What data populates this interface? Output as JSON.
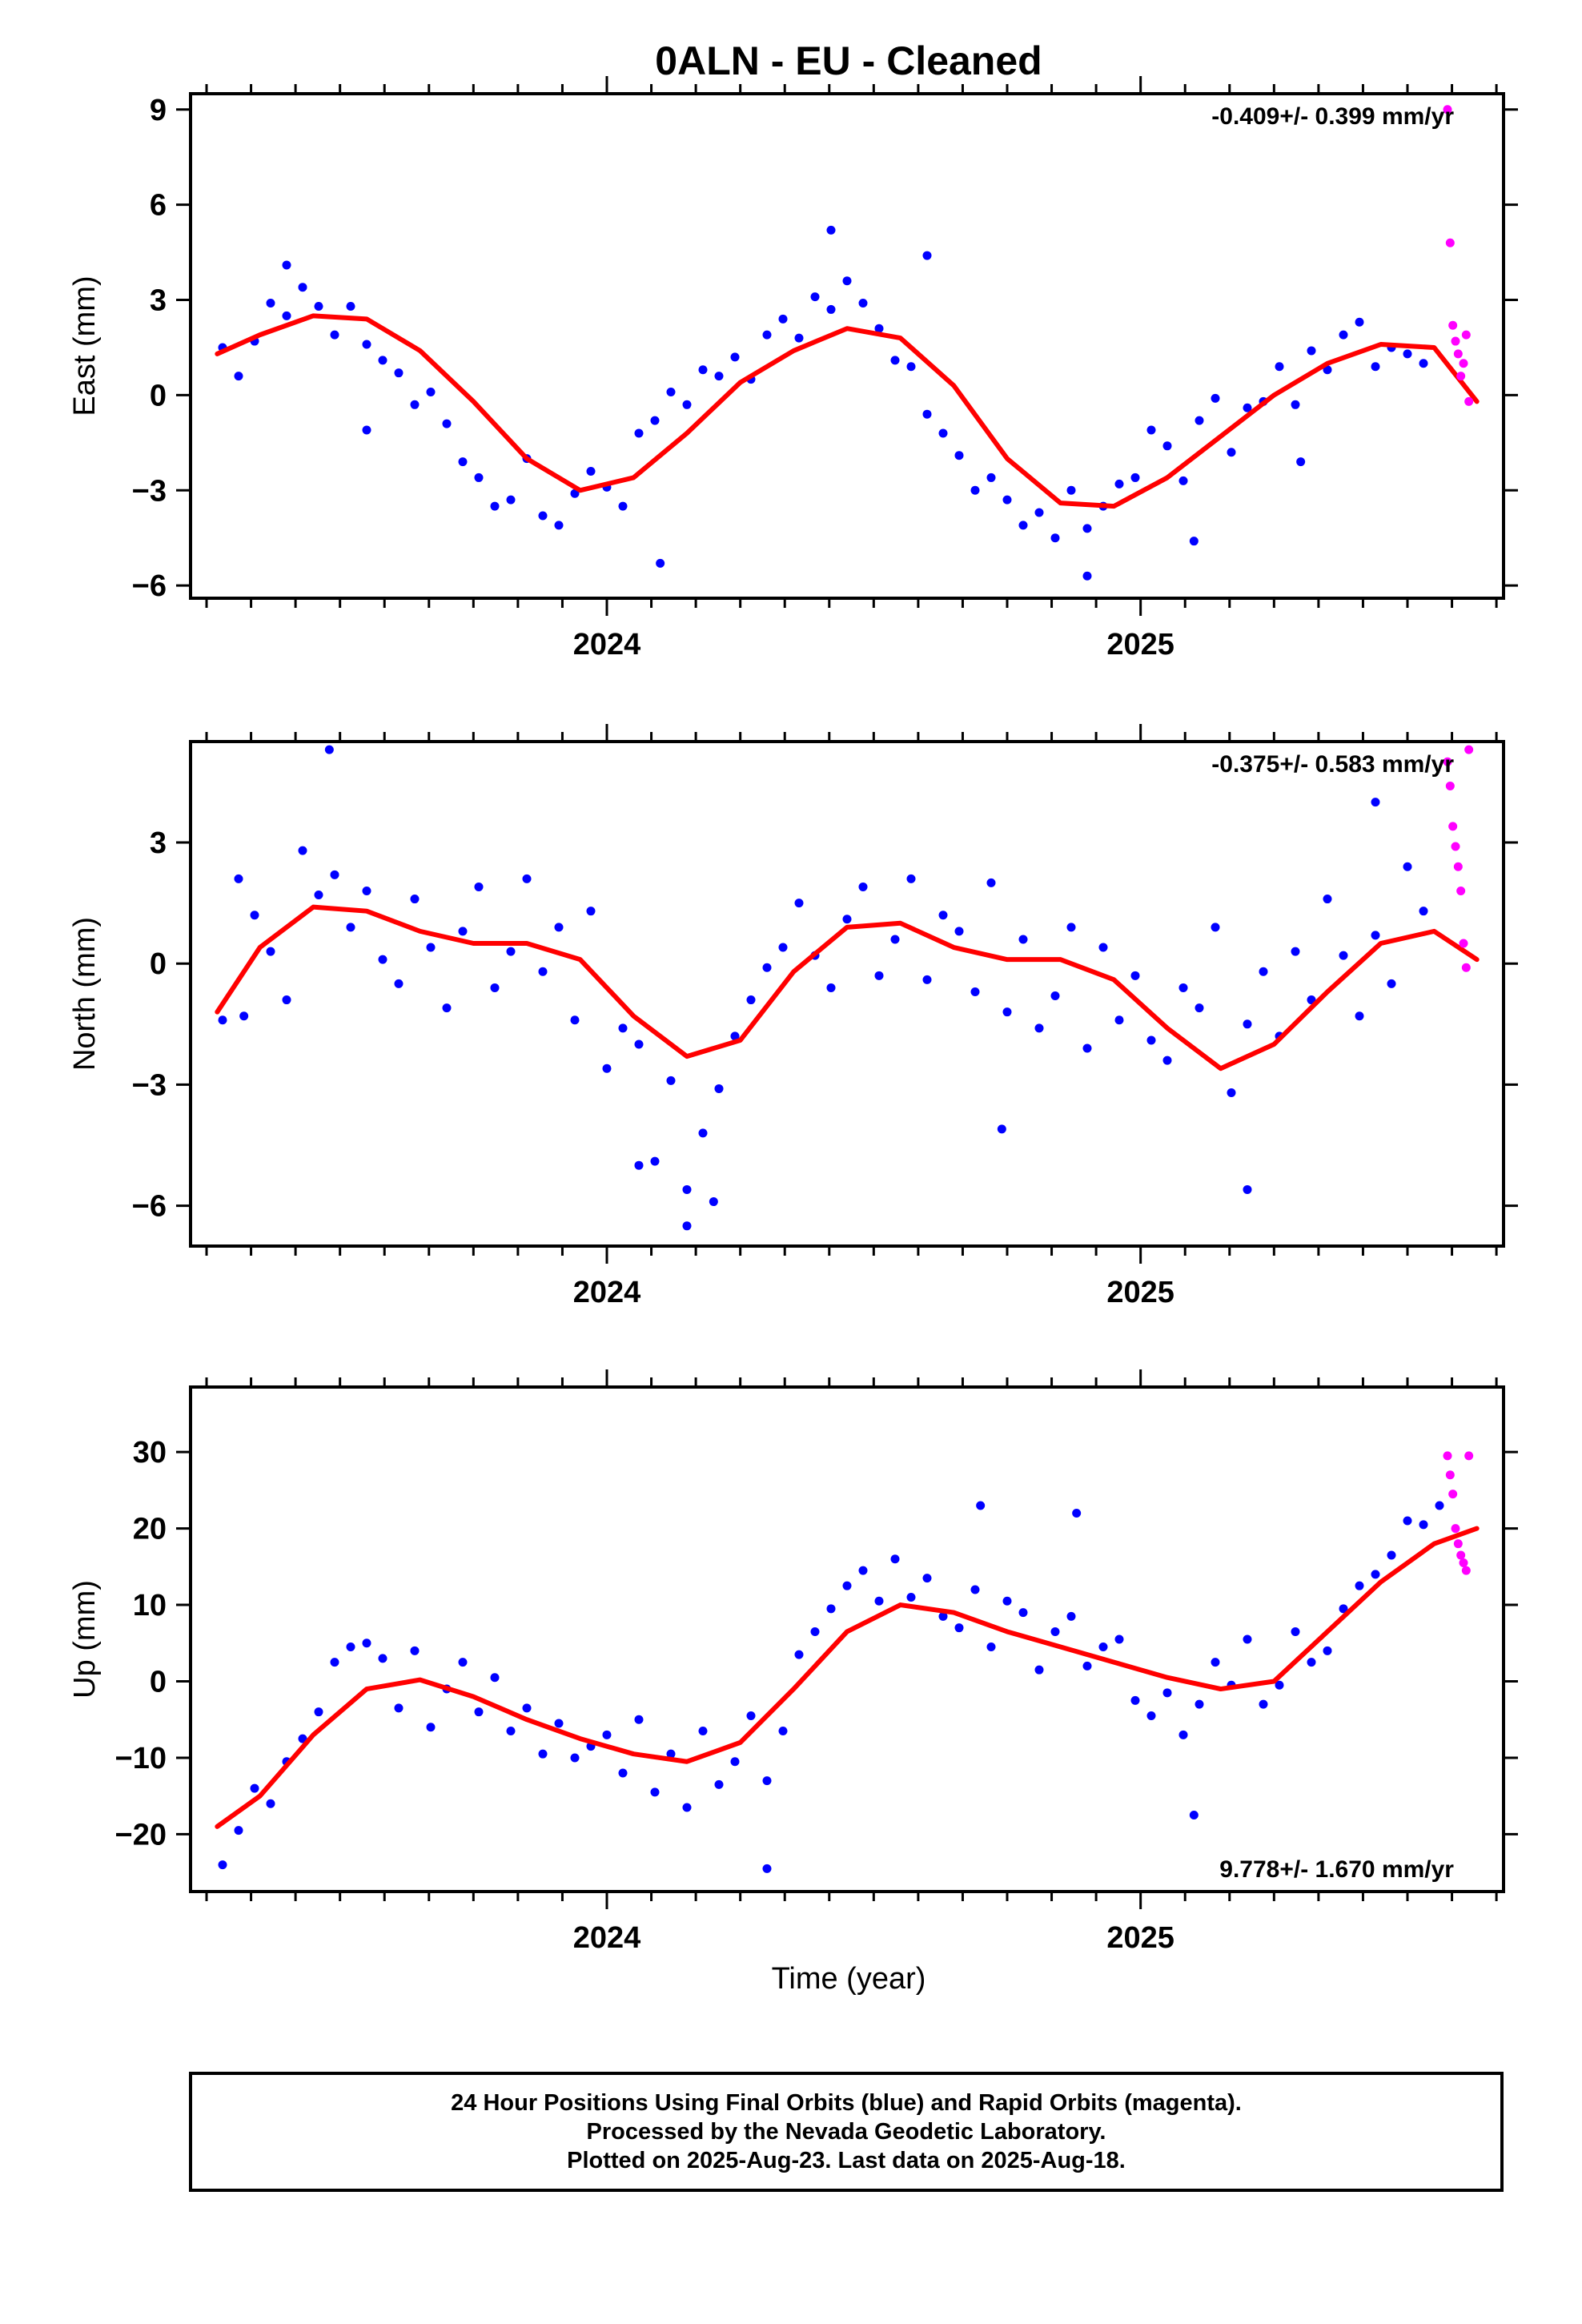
{
  "title": "0ALN  - EU - Cleaned",
  "colors": {
    "final": "#0000ff",
    "rapid": "#ff00ff",
    "model": "#ff0000",
    "frame": "#000000"
  },
  "xlabel": "Time (year)",
  "footer": {
    "line1": "24 Hour Positions Using Final Orbits (blue) and Rapid Orbits (magenta).",
    "line2": "Processed by the Nevada Geodetic Laboratory.",
    "line3": "Plotted on 2025-Aug-23. Last data on 2025-Aug-18."
  },
  "chart_data": [
    {
      "type": "scatter",
      "component": "east",
      "ylabel": "East (mm)",
      "rate_label": "-0.409+/- 0.399 mm/yr",
      "xlim": [
        2023.22,
        2025.68
      ],
      "ylim": [
        -6.4,
        9.5
      ],
      "yticks": [
        -6,
        -3,
        0,
        3,
        6,
        9
      ],
      "xticks": [
        2024,
        2025
      ],
      "grid": false,
      "model_fit": {
        "name": "red curve",
        "x": [
          2023.27,
          2023.35,
          2023.45,
          2023.55,
          2023.65,
          2023.75,
          2023.85,
          2023.95,
          2024.05,
          2024.15,
          2024.25,
          2024.35,
          2024.45,
          2024.55,
          2024.65,
          2024.75,
          2024.85,
          2024.95,
          2025.05,
          2025.15,
          2025.25,
          2025.35,
          2025.45,
          2025.55,
          2025.63
        ],
        "y": [
          1.3,
          1.9,
          2.5,
          2.4,
          1.4,
          -0.2,
          -2.0,
          -3.0,
          -2.6,
          -1.2,
          0.4,
          1.4,
          2.1,
          1.8,
          0.3,
          -2.0,
          -3.4,
          -3.5,
          -2.6,
          -1.3,
          0.0,
          1.0,
          1.6,
          1.5,
          -0.2
        ]
      },
      "series_final": {
        "x": [
          2023.28,
          2023.31,
          2023.34,
          2023.37,
          2023.4,
          2023.43,
          2023.46,
          2023.49,
          2023.52,
          2023.55,
          2023.58,
          2023.61,
          2023.64,
          2023.67,
          2023.7,
          2023.73,
          2023.76,
          2023.79,
          2023.82,
          2023.85,
          2023.88,
          2023.91,
          2023.94,
          2023.97,
          2024.0,
          2024.03,
          2024.06,
          2024.09,
          2024.12,
          2024.15,
          2024.18,
          2024.21,
          2024.24,
          2024.27,
          2024.3,
          2024.33,
          2024.36,
          2024.39,
          2024.42,
          2024.45,
          2024.48,
          2024.51,
          2024.54,
          2024.57,
          2024.6,
          2024.63,
          2024.66,
          2024.69,
          2024.72,
          2024.75,
          2024.78,
          2024.81,
          2024.84,
          2024.87,
          2024.9,
          2024.93,
          2024.96,
          2024.99,
          2025.02,
          2025.05,
          2025.08,
          2025.11,
          2025.14,
          2025.17,
          2025.2,
          2025.23,
          2025.26,
          2025.29,
          2025.32,
          2025.35,
          2025.38,
          2025.41,
          2025.44,
          2025.47,
          2025.5,
          2025.53,
          2025.3,
          2023.4,
          2024.42,
          2024.9,
          2023.55,
          2024.1,
          2024.6,
          2025.1
        ],
        "y": [
          1.5,
          0.6,
          1.7,
          2.9,
          2.5,
          3.4,
          2.8,
          1.9,
          2.8,
          1.6,
          1.1,
          0.7,
          -0.3,
          0.1,
          -0.9,
          -2.1,
          -2.6,
          -3.5,
          -3.3,
          -2.0,
          -3.8,
          -4.1,
          -3.1,
          -2.4,
          -2.9,
          -3.5,
          -1.2,
          -0.8,
          0.1,
          -0.3,
          0.8,
          0.6,
          1.2,
          0.5,
          1.9,
          2.4,
          1.8,
          3.1,
          2.7,
          3.6,
          2.9,
          2.1,
          1.1,
          0.9,
          -0.6,
          -1.2,
          -1.9,
          -3.0,
          -2.6,
          -3.3,
          -4.1,
          -3.7,
          -4.5,
          -3.0,
          -4.2,
          -3.5,
          -2.8,
          -2.6,
          -1.1,
          -1.6,
          -2.7,
          -0.8,
          -0.1,
          -1.8,
          -0.4,
          -0.2,
          0.9,
          -0.3,
          1.4,
          0.8,
          1.9,
          2.3,
          0.9,
          1.5,
          1.3,
          1.0,
          -2.1,
          4.1,
          5.2,
          -5.7,
          -1.1,
          -5.3,
          4.4,
          -4.6
        ]
      },
      "series_rapid": {
        "x": [
          2025.575,
          2025.58,
          2025.585,
          2025.59,
          2025.595,
          2025.6,
          2025.605,
          2025.61,
          2025.615
        ],
        "y": [
          9.0,
          4.8,
          2.2,
          1.7,
          1.3,
          0.6,
          1.0,
          1.9,
          -0.2
        ]
      }
    },
    {
      "type": "scatter",
      "component": "north",
      "ylabel": "North (mm)",
      "rate_label": "-0.375+/- 0.583 mm/yr",
      "xlim": [
        2023.22,
        2025.68
      ],
      "ylim": [
        -7.0,
        5.5
      ],
      "yticks": [
        -6,
        -3,
        0,
        3
      ],
      "xticks": [
        2024,
        2025
      ],
      "grid": false,
      "model_fit": {
        "name": "red curve",
        "x": [
          2023.27,
          2023.35,
          2023.45,
          2023.55,
          2023.65,
          2023.75,
          2023.85,
          2023.95,
          2024.05,
          2024.15,
          2024.25,
          2024.35,
          2024.45,
          2024.55,
          2024.65,
          2024.75,
          2024.85,
          2024.95,
          2025.05,
          2025.15,
          2025.25,
          2025.35,
          2025.45,
          2025.55,
          2025.63
        ],
        "y": [
          -1.2,
          0.4,
          1.4,
          1.3,
          0.8,
          0.5,
          0.5,
          0.1,
          -1.3,
          -2.3,
          -1.9,
          -0.2,
          0.9,
          1.0,
          0.4,
          0.1,
          0.1,
          -0.4,
          -1.6,
          -2.6,
          -2.0,
          -0.7,
          0.5,
          0.8,
          0.1
        ]
      },
      "series_final": {
        "x": [
          2023.28,
          2023.31,
          2023.34,
          2023.37,
          2023.4,
          2023.43,
          2023.46,
          2023.49,
          2023.52,
          2023.55,
          2023.58,
          2023.61,
          2023.64,
          2023.67,
          2023.7,
          2023.73,
          2023.76,
          2023.79,
          2023.82,
          2023.85,
          2023.88,
          2023.91,
          2023.94,
          2023.97,
          2024.0,
          2024.03,
          2024.06,
          2024.09,
          2024.12,
          2024.15,
          2024.18,
          2024.21,
          2024.24,
          2024.27,
          2024.3,
          2024.33,
          2024.36,
          2024.39,
          2024.42,
          2024.45,
          2024.48,
          2024.51,
          2024.54,
          2024.57,
          2024.6,
          2024.63,
          2024.66,
          2024.69,
          2024.72,
          2024.75,
          2024.78,
          2024.81,
          2024.84,
          2024.87,
          2024.9,
          2024.93,
          2024.96,
          2024.99,
          2025.02,
          2025.05,
          2025.08,
          2025.11,
          2025.14,
          2025.17,
          2025.2,
          2025.23,
          2025.26,
          2025.29,
          2025.32,
          2025.35,
          2025.38,
          2025.41,
          2025.44,
          2025.47,
          2025.5,
          2025.53,
          2023.48,
          2023.32,
          2024.15,
          2024.2,
          2024.06,
          2024.74,
          2025.2,
          2025.44
        ],
        "y": [
          -1.4,
          2.1,
          1.2,
          0.3,
          -0.9,
          2.8,
          1.7,
          2.2,
          0.9,
          1.8,
          0.1,
          -0.5,
          1.6,
          0.4,
          -1.1,
          0.8,
          1.9,
          -0.6,
          0.3,
          2.1,
          -0.2,
          0.9,
          -1.4,
          1.3,
          -2.6,
          -1.6,
          -2.0,
          -4.9,
          -2.9,
          -6.5,
          -4.2,
          -3.1,
          -1.8,
          -0.9,
          -0.1,
          0.4,
          1.5,
          0.2,
          -0.6,
          1.1,
          1.9,
          -0.3,
          0.6,
          2.1,
          -0.4,
          1.2,
          0.8,
          -0.7,
          2.0,
          -1.2,
          0.6,
          -1.6,
          -0.8,
          0.9,
          -2.1,
          0.4,
          -1.4,
          -0.3,
          -1.9,
          -2.4,
          -0.6,
          -1.1,
          0.9,
          -3.2,
          -1.5,
          -0.2,
          -1.8,
          0.3,
          -0.9,
          1.6,
          0.2,
          -1.3,
          0.7,
          -0.5,
          2.4,
          1.3,
          5.3,
          -1.3,
          -5.6,
          -5.9,
          -5.0,
          -4.1,
          -5.6,
          4.0
        ]
      },
      "series_rapid": {
        "x": [
          2025.575,
          2025.58,
          2025.585,
          2025.59,
          2025.595,
          2025.6,
          2025.605,
          2025.61,
          2025.615
        ],
        "y": [
          5.0,
          4.4,
          3.4,
          2.9,
          2.4,
          1.8,
          0.5,
          -0.1,
          5.3
        ]
      }
    },
    {
      "type": "scatter",
      "component": "up",
      "ylabel": "Up (mm)",
      "rate_label": "9.778+/- 1.670 mm/yr",
      "xlim": [
        2023.22,
        2025.68
      ],
      "ylim": [
        -27.5,
        38.5
      ],
      "yticks": [
        -20,
        -10,
        0,
        10,
        20,
        30
      ],
      "xticks": [
        2024,
        2025
      ],
      "grid": false,
      "model_fit": {
        "name": "red curve",
        "x": [
          2023.27,
          2023.35,
          2023.45,
          2023.55,
          2023.65,
          2023.75,
          2023.85,
          2023.95,
          2024.05,
          2024.15,
          2024.25,
          2024.35,
          2024.45,
          2024.55,
          2024.65,
          2024.75,
          2024.85,
          2024.95,
          2025.05,
          2025.15,
          2025.25,
          2025.35,
          2025.45,
          2025.55,
          2025.63
        ],
        "y": [
          -19.0,
          -15.0,
          -7.0,
          -1.0,
          0.2,
          -2.0,
          -5.0,
          -7.5,
          -9.5,
          -10.5,
          -8.0,
          -1.0,
          6.5,
          10.0,
          9.0,
          6.5,
          4.5,
          2.5,
          0.5,
          -1.0,
          0.0,
          6.5,
          13.0,
          18.0,
          20.0
        ]
      },
      "series_final": {
        "x": [
          2023.28,
          2023.31,
          2023.34,
          2023.37,
          2023.4,
          2023.43,
          2023.46,
          2023.49,
          2023.52,
          2023.55,
          2023.58,
          2023.61,
          2023.64,
          2023.67,
          2023.7,
          2023.73,
          2023.76,
          2023.79,
          2023.82,
          2023.85,
          2023.88,
          2023.91,
          2023.94,
          2023.97,
          2024.0,
          2024.03,
          2024.06,
          2024.09,
          2024.12,
          2024.15,
          2024.18,
          2024.21,
          2024.24,
          2024.27,
          2024.3,
          2024.33,
          2024.36,
          2024.39,
          2024.42,
          2024.45,
          2024.48,
          2024.51,
          2024.54,
          2024.57,
          2024.6,
          2024.63,
          2024.66,
          2024.69,
          2024.72,
          2024.75,
          2024.78,
          2024.81,
          2024.84,
          2024.87,
          2024.9,
          2024.93,
          2024.96,
          2024.99,
          2025.02,
          2025.05,
          2025.08,
          2025.11,
          2025.14,
          2025.17,
          2025.2,
          2025.23,
          2025.26,
          2025.29,
          2025.32,
          2025.35,
          2025.38,
          2025.41,
          2025.44,
          2025.47,
          2025.5,
          2025.53,
          2025.56,
          2024.3,
          2025.1,
          2024.7,
          2024.88
        ],
        "y": [
          -24.0,
          -19.5,
          -14.0,
          -16.0,
          -10.5,
          -7.5,
          -4.0,
          2.5,
          4.5,
          5.0,
          3.0,
          -3.5,
          4.0,
          -6.0,
          -1.0,
          2.5,
          -4.0,
          0.5,
          -6.5,
          -3.5,
          -9.5,
          -5.5,
          -10.0,
          -8.5,
          -7.0,
          -12.0,
          -5.0,
          -14.5,
          -9.5,
          -16.5,
          -6.5,
          -13.5,
          -10.5,
          -4.5,
          -13.0,
          -6.5,
          3.5,
          6.5,
          9.5,
          12.5,
          14.5,
          10.5,
          16.0,
          11.0,
          13.5,
          8.5,
          7.0,
          12.0,
          4.5,
          10.5,
          9.0,
          1.5,
          6.5,
          8.5,
          2.0,
          4.5,
          5.5,
          -2.5,
          -4.5,
          -1.5,
          -7.0,
          -3.0,
          2.5,
          -0.5,
          5.5,
          -3.0,
          -0.5,
          6.5,
          2.5,
          4.0,
          9.5,
          12.5,
          14.0,
          16.5,
          21.0,
          20.5,
          23.0,
          -24.5,
          -17.5,
          23.0,
          22.0
        ]
      },
      "series_rapid": {
        "x": [
          2025.575,
          2025.58,
          2025.585,
          2025.59,
          2025.595,
          2025.6,
          2025.605,
          2025.61,
          2025.615
        ],
        "y": [
          29.5,
          27.0,
          24.5,
          20.0,
          18.0,
          16.5,
          15.5,
          14.5,
          29.5
        ]
      }
    }
  ]
}
